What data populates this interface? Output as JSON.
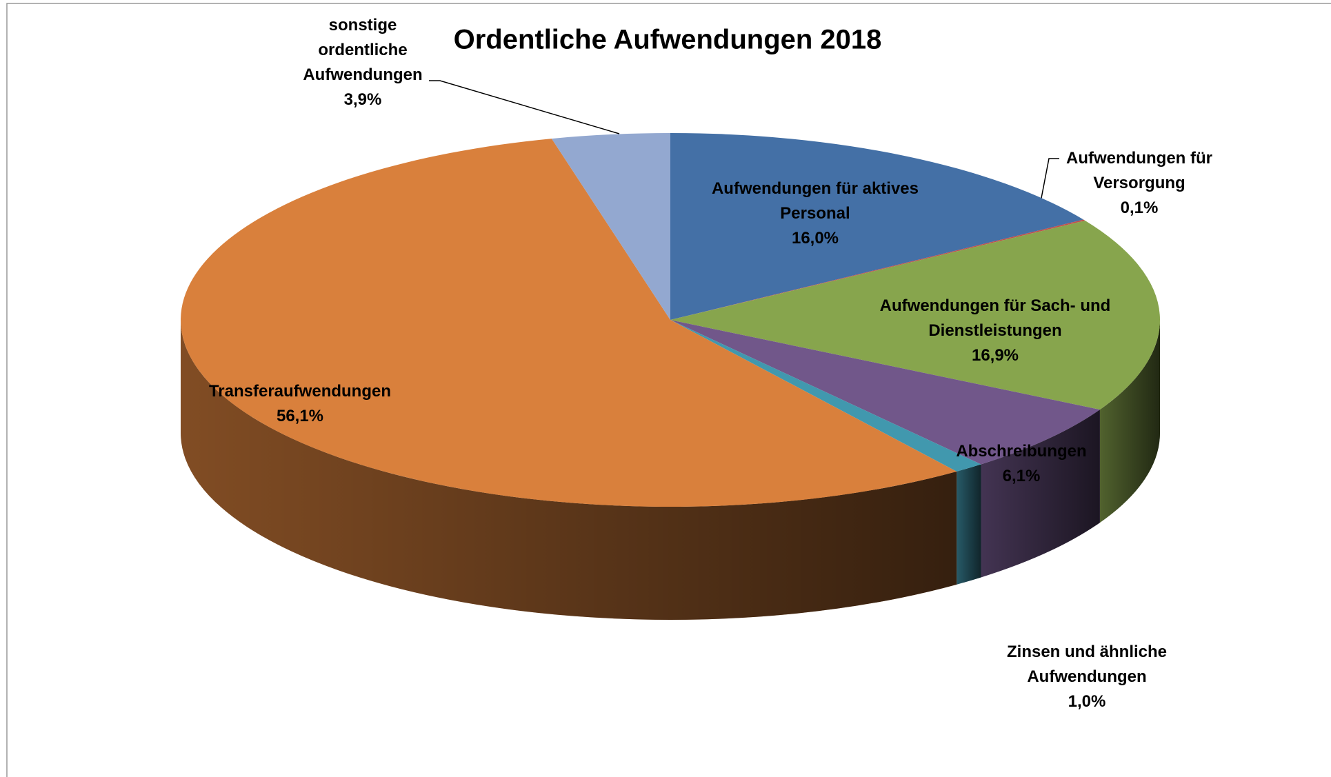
{
  "chart_data": {
    "type": "pie",
    "title": "Ordentliche Aufwendungen 2018",
    "categories": [
      "Aufwendungen für aktives Personal",
      "Aufwendungen für Versorgung",
      "Aufwendungen für Sach- und Dienstleistungen",
      "Abschreibungen",
      "Zinsen und ähnliche Aufwendungen",
      "Transferaufwendungen",
      "sonstige ordentliche Aufwendungen"
    ],
    "values": [
      16.0,
      0.1,
      16.9,
      6.1,
      1.0,
      56.1,
      3.9
    ],
    "value_labels": [
      "16,0%",
      "0,1%",
      "16,9%",
      "6,1%",
      "1,0%",
      "56,1%",
      "3,9%"
    ],
    "colors": [
      "#4470a6",
      "#c0504d",
      "#87a54d",
      "#71578a",
      "#4198ae",
      "#d9803c",
      "#93a8d0"
    ]
  }
}
